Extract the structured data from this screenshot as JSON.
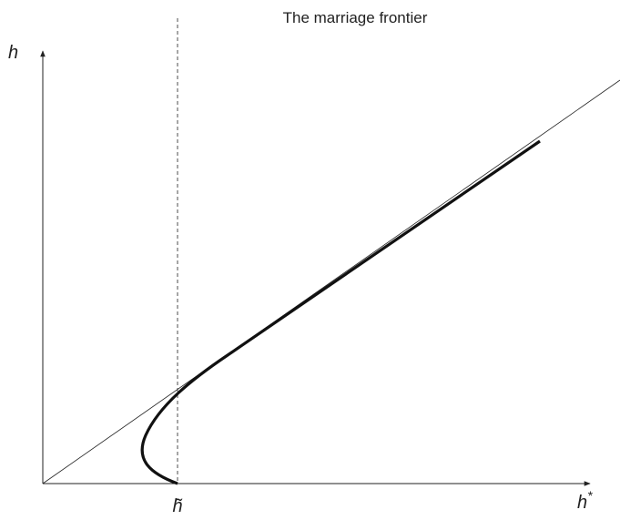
{
  "title": "The marriage frontier",
  "axes": {
    "y_label": "h",
    "x_label": {
      "base": "h",
      "superscript": "*"
    }
  },
  "threshold_label": "h̃"
}
